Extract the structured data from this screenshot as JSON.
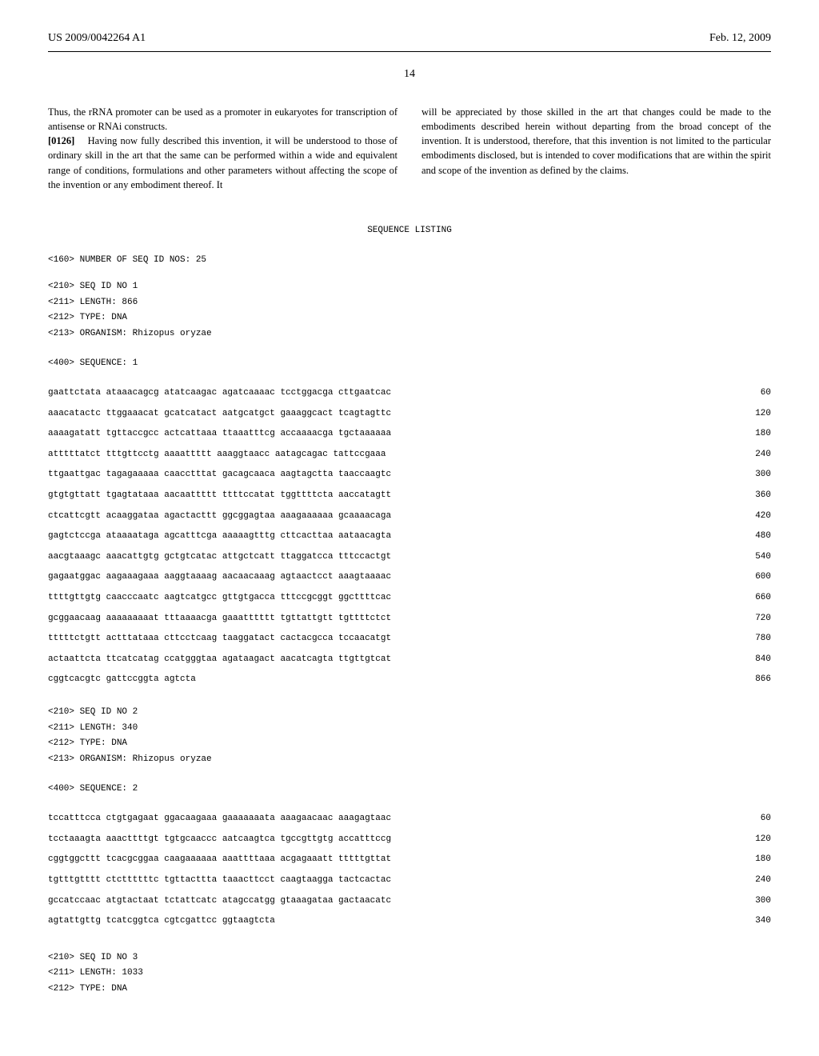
{
  "header": {
    "patent_number": "US 2009/0042264 A1",
    "date": "Feb. 12, 2009",
    "page_number": "14"
  },
  "body": {
    "left_column_part1": "Thus, the rRNA promoter can be used as a promoter in eukaryotes for transcription of antisense or RNAi constructs.",
    "paragraph_number": "[0126]",
    "left_column_part2": "Having now fully described this invention, it will be understood to those of ordinary skill in the art that the same can be performed within a wide and equivalent range of conditions, formulations and other parameters without affecting the scope of the invention or any embodiment thereof. It",
    "right_column": "will be appreciated by those skilled in the art that changes could be made to the embodiments described herein without departing from the broad concept of the invention. It is understood, therefore, that this invention is not limited to the particular embodiments disclosed, but is intended to cover modifications that are within the spirit and scope of the invention as defined by the claims."
  },
  "sequence_listing": {
    "title": "SEQUENCE LISTING",
    "header_160": "<160> NUMBER OF SEQ ID NOS: 25",
    "seq1": {
      "line_210": "<210> SEQ ID NO 1",
      "line_211": "<211> LENGTH: 866",
      "line_212": "<212> TYPE: DNA",
      "line_213": "<213> ORGANISM: Rhizopus oryzae",
      "line_400": "<400> SEQUENCE: 1",
      "rows": [
        {
          "seq": "gaattctata ataaacagcg atatcaagac agatcaaaac tcctggacga cttgaatcac",
          "num": "60"
        },
        {
          "seq": "aaacatactc ttggaaacat gcatcatact aatgcatgct gaaaggcact tcagtagttc",
          "num": "120"
        },
        {
          "seq": "aaaagatatt tgttaccgcc actcattaaa ttaaatttcg accaaaacga tgctaaaaaa",
          "num": "180"
        },
        {
          "seq": "atttttatct tttgttcctg aaaattttt aaaggtaacc aatagcagac tattccgaaa",
          "num": "240"
        },
        {
          "seq": "ttgaattgac tagagaaaaa caacctttat gacagcaaca aagtagctta taaccaagtc",
          "num": "300"
        },
        {
          "seq": "gtgtgttatt tgagtataaa aacaattttt ttttccatat tggttttcta aaccatagtt",
          "num": "360"
        },
        {
          "seq": "ctcattcgtt acaaggataa agactacttt ggcggagtaa aaagaaaaaa gcaaaacaga",
          "num": "420"
        },
        {
          "seq": "gagtctccga ataaaataga agcatttcga aaaaagtttg cttcacttaa aataacagta",
          "num": "480"
        },
        {
          "seq": "aacgtaaagc aaacattgtg gctgtcatac attgctcatt ttaggatcca tttccactgt",
          "num": "540"
        },
        {
          "seq": "gagaatggac aagaaagaaa aaggtaaaag aacaacaaag agtaactcct aaagtaaaac",
          "num": "600"
        },
        {
          "seq": "ttttgttgtg caacccaatc aagtcatgcc gttgtgacca tttccgcggt ggcttttcac",
          "num": "660"
        },
        {
          "seq": "gcggaacaag aaaaaaaaat tttaaaacga gaaatttttt tgttattgtt tgttttctct",
          "num": "720"
        },
        {
          "seq": "tttttctgtt actttataaa cttcctcaag taaggatact cactacgcca tccaacatgt",
          "num": "780"
        },
        {
          "seq": "actaattcta ttcatcatag ccatgggtaa agataagact aacatcagta ttgttgtcat",
          "num": "840"
        },
        {
          "seq": "cggtcacgtc gattccggta agtcta",
          "num": "866"
        }
      ]
    },
    "seq2": {
      "line_210": "<210> SEQ ID NO 2",
      "line_211": "<211> LENGTH: 340",
      "line_212": "<212> TYPE: DNA",
      "line_213": "<213> ORGANISM: Rhizopus oryzae",
      "line_400": "<400> SEQUENCE: 2",
      "rows": [
        {
          "seq": "tccatttcca ctgtgagaat ggacaagaaa gaaaaaaata aaagaacaac aaagagtaac",
          "num": "60"
        },
        {
          "seq": "tcctaaagta aaacttttgt tgtgcaaccc aatcaagtca tgccgttgtg accatttccg",
          "num": "120"
        },
        {
          "seq": "cggtggcttt tcacgcggaa caagaaaaaa aaattttaaa acgagaaatt tttttgttat",
          "num": "180"
        },
        {
          "seq": "tgtttgtttt ctcttttttc tgttacttta taaacttcct caagtaagga tactcactac",
          "num": "240"
        },
        {
          "seq": "gccatccaac atgtactaat tctattcatc atagccatgg gtaaagataa gactaacatc",
          "num": "300"
        },
        {
          "seq": "agtattgttg tcatcggtca cgtcgattcc ggtaagtcta",
          "num": "340"
        }
      ]
    },
    "seq3": {
      "line_210": "<210> SEQ ID NO 3",
      "line_211": "<211> LENGTH: 1033",
      "line_212": "<212> TYPE: DNA"
    }
  }
}
